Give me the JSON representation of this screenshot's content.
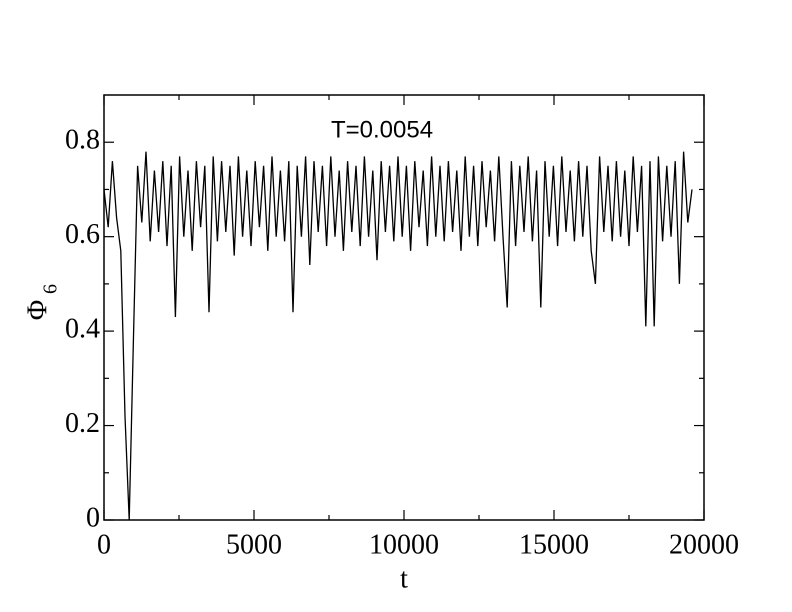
{
  "chart_data": {
    "type": "line",
    "xlabel": "t",
    "ylabel": "Φ",
    "ylabel_subscript": "6",
    "annotation": "T=0.0054",
    "xlim": [
      0,
      20000
    ],
    "ylim": [
      0,
      0.9
    ],
    "xticks": [
      0,
      5000,
      10000,
      15000,
      20000
    ],
    "yticks": [
      0,
      0.2,
      0.4,
      0.6,
      0.8
    ],
    "xminor_ticks": [
      2500,
      7500,
      12500,
      17500
    ],
    "yminor_ticks": [
      0.1,
      0.3,
      0.5,
      0.7
    ],
    "color": "#000000",
    "x": [
      0,
      140,
      280,
      420,
      560,
      700,
      840,
      980,
      1120,
      1260,
      1400,
      1540,
      1680,
      1820,
      1960,
      2100,
      2240,
      2380,
      2520,
      2660,
      2800,
      2940,
      3080,
      3220,
      3360,
      3500,
      3640,
      3780,
      3920,
      4060,
      4200,
      4340,
      4480,
      4620,
      4760,
      4900,
      5040,
      5180,
      5320,
      5460,
      5600,
      5740,
      5880,
      6020,
      6160,
      6300,
      6440,
      6580,
      6720,
      6860,
      7000,
      7140,
      7280,
      7420,
      7560,
      7700,
      7840,
      7980,
      8120,
      8260,
      8400,
      8540,
      8680,
      8820,
      8960,
      9100,
      9240,
      9380,
      9520,
      9660,
      9800,
      9940,
      10080,
      10220,
      10360,
      10500,
      10640,
      10780,
      10920,
      11060,
      11200,
      11340,
      11480,
      11620,
      11760,
      11900,
      12040,
      12180,
      12320,
      12460,
      12600,
      12740,
      12880,
      13020,
      13160,
      13300,
      13440,
      13580,
      13720,
      13860,
      14000,
      14140,
      14280,
      14420,
      14560,
      14700,
      14840,
      14980,
      15120,
      15260,
      15400,
      15540,
      15680,
      15820,
      15960,
      16100,
      16240,
      16380,
      16520,
      16660,
      16800,
      16940,
      17080,
      17220,
      17360,
      17500,
      17640,
      17780,
      17920,
      18060,
      18200,
      18340,
      18480,
      18620,
      18760,
      18900,
      19040,
      19180,
      19320,
      19460,
      19600
    ],
    "values": [
      0.7,
      0.62,
      0.76,
      0.64,
      0.57,
      0.22,
      0.0,
      0.38,
      0.75,
      0.63,
      0.78,
      0.59,
      0.74,
      0.61,
      0.76,
      0.58,
      0.75,
      0.43,
      0.77,
      0.6,
      0.74,
      0.57,
      0.76,
      0.62,
      0.75,
      0.44,
      0.77,
      0.59,
      0.76,
      0.61,
      0.75,
      0.56,
      0.77,
      0.6,
      0.74,
      0.58,
      0.76,
      0.62,
      0.75,
      0.57,
      0.77,
      0.6,
      0.74,
      0.59,
      0.76,
      0.44,
      0.75,
      0.6,
      0.77,
      0.54,
      0.76,
      0.61,
      0.75,
      0.58,
      0.77,
      0.6,
      0.74,
      0.57,
      0.76,
      0.61,
      0.75,
      0.58,
      0.77,
      0.6,
      0.74,
      0.55,
      0.76,
      0.61,
      0.75,
      0.59,
      0.77,
      0.6,
      0.75,
      0.57,
      0.76,
      0.62,
      0.74,
      0.58,
      0.77,
      0.6,
      0.75,
      0.59,
      0.76,
      0.61,
      0.74,
      0.57,
      0.77,
      0.6,
      0.75,
      0.58,
      0.76,
      0.62,
      0.74,
      0.59,
      0.77,
      0.6,
      0.45,
      0.76,
      0.58,
      0.75,
      0.61,
      0.77,
      0.59,
      0.74,
      0.45,
      0.76,
      0.6,
      0.75,
      0.58,
      0.77,
      0.61,
      0.74,
      0.59,
      0.76,
      0.6,
      0.75,
      0.57,
      0.5,
      0.77,
      0.61,
      0.75,
      0.59,
      0.76,
      0.6,
      0.74,
      0.58,
      0.77,
      0.61,
      0.75,
      0.41,
      0.76,
      0.41,
      0.77,
      0.59,
      0.75,
      0.6,
      0.76,
      0.5,
      0.78,
      0.63,
      0.7
    ]
  }
}
